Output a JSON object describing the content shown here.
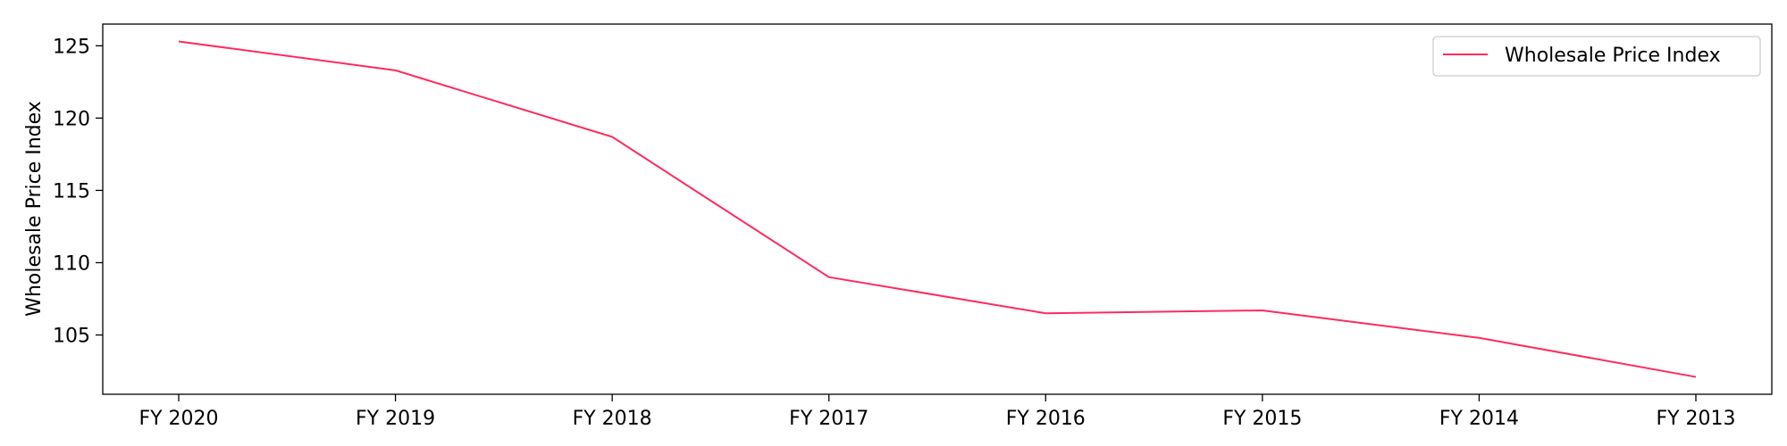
{
  "chart_data": {
    "type": "line",
    "title": "",
    "xlabel": "",
    "ylabel": "Wholesale Price Index",
    "categories": [
      "FY 2020",
      "FY 2019",
      "FY 2018",
      "FY 2017",
      "FY 2016",
      "FY 2015",
      "FY 2014",
      "FY 2013"
    ],
    "series": [
      {
        "name": "Wholesale Price Index",
        "values": [
          125.3,
          123.3,
          118.7,
          109.0,
          106.5,
          106.7,
          104.8,
          102.1
        ],
        "color": "#ff2a5c"
      }
    ],
    "ylim": [
      100.9,
      126.5
    ],
    "yticks": [
      105,
      110,
      115,
      120,
      125
    ],
    "grid": false,
    "legend_position": "top-right"
  }
}
